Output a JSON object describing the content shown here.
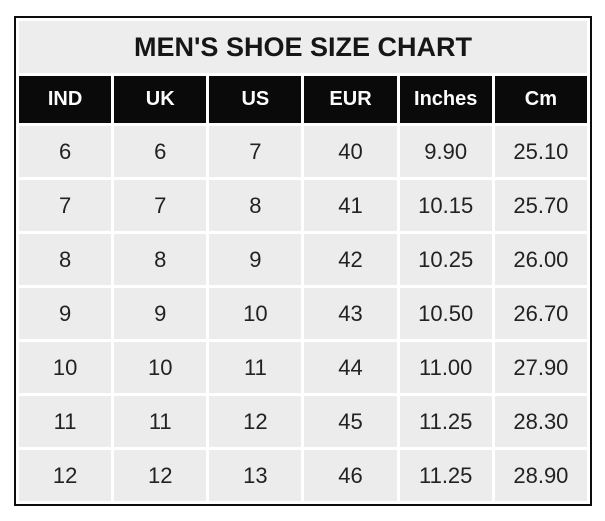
{
  "colors": {
    "page_background": "#ffffff",
    "title_background": "#ededed",
    "header_background": "#0a0a0a",
    "header_text": "#fcfcfc",
    "cell_background": "#ececec",
    "cell_text": "#222222",
    "gridline": "#ffffff",
    "outer_border": "#0d0d0d"
  },
  "chart_data": {
    "type": "table",
    "title": "MEN'S SHOE SIZE CHART",
    "columns": [
      "IND",
      "UK",
      "US",
      "EUR",
      "Inches",
      "Cm"
    ],
    "rows": [
      [
        "6",
        "6",
        "7",
        "40",
        "9.90",
        "25.10"
      ],
      [
        "7",
        "7",
        "8",
        "41",
        "10.15",
        "25.70"
      ],
      [
        "8",
        "8",
        "9",
        "42",
        "10.25",
        "26.00"
      ],
      [
        "9",
        "9",
        "10",
        "43",
        "10.50",
        "26.70"
      ],
      [
        "10",
        "10",
        "11",
        "44",
        "11.00",
        "27.90"
      ],
      [
        "11",
        "11",
        "12",
        "45",
        "11.25",
        "28.30"
      ],
      [
        "12",
        "12",
        "13",
        "46",
        "11.25",
        "28.90"
      ]
    ],
    "layout": {
      "grid": true,
      "legend": "none",
      "column_count": 6,
      "row_count": 7
    }
  }
}
